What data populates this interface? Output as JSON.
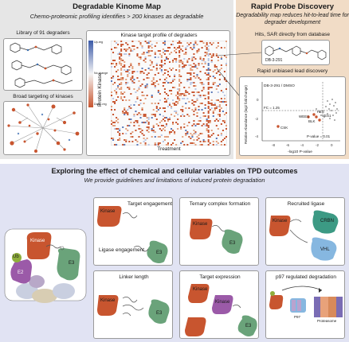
{
  "top_left": {
    "title": "Degradable Kinome Map",
    "subtitle": "Chemo-proteomic profiling identifies > 200 kinases as degradable",
    "library_label": "Library of 91 degraders",
    "broad_label": "Broad targeting of kinases",
    "heatmap_title": "Kinase target profile of degraders",
    "heatmap_ylabel": "Protein Kinase",
    "heatmap_xlabel": "Treatment",
    "legend": [
      "Up-reg",
      "No change",
      "Down-reg"
    ]
  },
  "top_right": {
    "title": "Rapid Probe Discovery",
    "subtitle": "Degradability map reduces hit-to-lead time for degrader development",
    "hits_label": "Hits, SAR directly from database",
    "compound_id": "DB-3-291",
    "lead_label": "Rapid unbiased lead discovery",
    "volcano_title": "DB-3-291 / DMSO",
    "volcano_ylabel": "Relative Abundance (log2 fold change)",
    "volcano_xlabel": "-log10 P-value",
    "fc_label": "FC = 1.25",
    "pval_label": "P-value = 0.01",
    "point_labels": [
      "FES",
      "WEE1",
      "YES1",
      "BLK",
      "CSK"
    ],
    "xticks": [
      "-8",
      "-6",
      "-4",
      "-2",
      "0"
    ],
    "yticks": [
      "0",
      "-2",
      "-4"
    ]
  },
  "bottom": {
    "title": "Exploring the effect of chemical and cellular variables on TPD outcomes",
    "subtitle": "We provide guidelines and limitations of induced protein degradation",
    "left_labels": {
      "kinase": "Kinase",
      "ub": "Ub",
      "e2": "E2",
      "e3": "E3"
    },
    "cards": {
      "target_engagement": {
        "title": "Target engagement",
        "sub": "Ligase engagement",
        "kinase": "Kinase",
        "e3": "E3"
      },
      "ternary": {
        "title": "Ternary complex formation",
        "kinase": "Kinase",
        "e3": "E3"
      },
      "recruited_ligase": {
        "title": "Recruited ligase",
        "kinase": "Kinase",
        "crbn": "CRBN",
        "vhl": "VHL"
      },
      "linker_length": {
        "title": "Linker length",
        "kinase": "Kinase",
        "e3": "E3"
      },
      "target_expression": {
        "title": "Target expression",
        "kinase": "Kinase",
        "e3": "E3"
      },
      "p97": {
        "title": "p97 regulated degradation",
        "p97": "P97",
        "proteasome": "Proteasome"
      }
    }
  },
  "colors": {
    "top_left_bg": "#e6e6e6",
    "top_right_bg": "#f1dcc6",
    "bottom_bg": "#e1e3f3",
    "kinase": "#c8552f",
    "e3": "#6aa37a",
    "e2": "#9b5aa8",
    "ub": "#8fae3c",
    "crbn": "#3c9a84",
    "vhl": "#86b7e0"
  }
}
